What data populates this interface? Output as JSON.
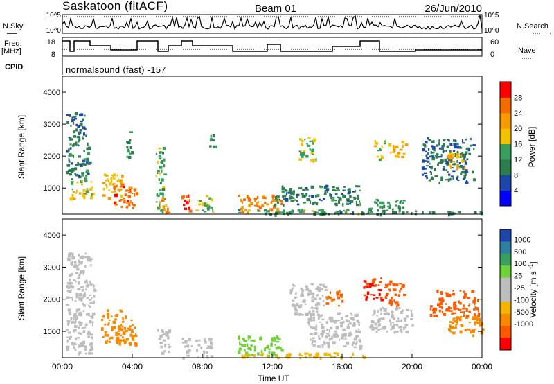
{
  "header": {
    "station": "Saskatoon (fitACF)",
    "beam": "Beam 01",
    "date": "26/Jun/2010"
  },
  "param_panels": {
    "nsky_label": "N.Sky",
    "nsearch_label": "N.Search",
    "noise_ticks": [
      "10^5",
      "10^0"
    ],
    "freq_label_top": "Freq.",
    "freq_label_unit": "[MHz]",
    "freq_ticks": [
      "18",
      "8"
    ],
    "nave_label": "Nave",
    "nave_ticks": [
      "60",
      "0"
    ],
    "cpid_label": "CPID",
    "cpid_text": "normalsound (fast) -157"
  },
  "colors": {
    "power_scale": [
      "#0000ff",
      "#1e46aa",
      "#2e7d4f",
      "#3a9e5e",
      "#f2c200",
      "#f59a00",
      "#f26c00",
      "#ff0000"
    ],
    "velocity_scale": [
      "#ff0000",
      "#ff5a00",
      "#f58a00",
      "#f5b400",
      "#bdbdbd",
      "#bdbdbd",
      "#6fd13a",
      "#3a9e5e",
      "#2e7fa0",
      "#1e46aa",
      "#2a3cb4"
    ]
  },
  "chart_data": [
    {
      "type": "heatmap",
      "panel": "power",
      "ylabel": "Slant Range [km]",
      "ylim": [
        180,
        4500
      ],
      "yticks": [
        "1000",
        "2000",
        "3000",
        "4000"
      ],
      "xlim_hours": [
        0,
        24
      ],
      "colorbar_label": "Power [dB]",
      "colorbar_ticks": [
        "4",
        "8",
        "12",
        "16",
        "20",
        "24",
        "28"
      ],
      "cells": [
        [
          0.2,
          1.3,
          2700,
          3400,
          8
        ],
        [
          0.2,
          1.5,
          1300,
          2700,
          10
        ],
        [
          0.4,
          1.7,
          700,
          1300,
          18
        ],
        [
          2.2,
          3.4,
          700,
          1500,
          20
        ],
        [
          2.9,
          4.2,
          400,
          1200,
          26
        ],
        [
          3.6,
          4.0,
          2000,
          2800,
          12
        ],
        [
          5.3,
          5.8,
          300,
          2300,
          14
        ],
        [
          5.5,
          6.0,
          250,
          800,
          22
        ],
        [
          6.8,
          7.3,
          250,
          800,
          28
        ],
        [
          7.6,
          8.6,
          250,
          800,
          16
        ],
        [
          8.4,
          8.8,
          2300,
          2800,
          12
        ],
        [
          10.0,
          12.5,
          250,
          800,
          24
        ],
        [
          10.0,
          17.2,
          200,
          350,
          14
        ],
        [
          12.0,
          17.0,
          500,
          1100,
          10
        ],
        [
          13.5,
          14.5,
          1800,
          2600,
          16
        ],
        [
          17.5,
          19.5,
          250,
          700,
          12
        ],
        [
          17.8,
          18.4,
          1900,
          2500,
          18
        ],
        [
          18.6,
          19.6,
          2000,
          2500,
          20
        ],
        [
          20.5,
          23.5,
          1200,
          2600,
          8
        ],
        [
          22.0,
          23.0,
          1600,
          2100,
          20
        ],
        [
          14.0,
          24.0,
          200,
          300,
          10
        ]
      ]
    },
    {
      "type": "heatmap",
      "panel": "velocity",
      "ylabel": "Slant Range [km]",
      "ylim": [
        180,
        4500
      ],
      "yticks": [
        "1000",
        "2000",
        "3000",
        "4000"
      ],
      "xlim_hours": [
        0,
        24
      ],
      "xlabel": "Time UT",
      "xticks": [
        "00:00",
        "04:00",
        "08:00",
        "12:00",
        "16:00",
        "20:00",
        "00:00"
      ],
      "colorbar_label": "Velocity [m s^-1]",
      "colorbar_ticks": [
        "1000",
        "500",
        "100",
        "25",
        "-25",
        "-100",
        "-500",
        "-1000"
      ],
      "cells": [
        [
          0.2,
          1.6,
          2600,
          3500,
          0
        ],
        [
          0.2,
          1.8,
          300,
          2600,
          5
        ],
        [
          2.2,
          3.6,
          700,
          1700,
          -150
        ],
        [
          2.9,
          4.2,
          600,
          1400,
          -200
        ],
        [
          5.4,
          6.1,
          250,
          1100,
          5
        ],
        [
          6.8,
          7.4,
          200,
          800,
          10
        ],
        [
          7.6,
          8.6,
          200,
          800,
          5
        ],
        [
          10.0,
          12.5,
          250,
          900,
          60
        ],
        [
          10.0,
          17.2,
          200,
          350,
          -90
        ],
        [
          13.0,
          15.0,
          1500,
          2500,
          0
        ],
        [
          14.0,
          17.0,
          500,
          1600,
          0
        ],
        [
          15.0,
          16.0,
          1800,
          2300,
          -300
        ],
        [
          17.2,
          18.5,
          2000,
          2700,
          -700
        ],
        [
          18.5,
          19.5,
          1800,
          2600,
          -400
        ],
        [
          17.5,
          20.0,
          1000,
          1800,
          0
        ],
        [
          21.0,
          23.8,
          1500,
          2300,
          -400
        ],
        [
          22.0,
          24.0,
          900,
          1500,
          -200
        ]
      ]
    }
  ]
}
